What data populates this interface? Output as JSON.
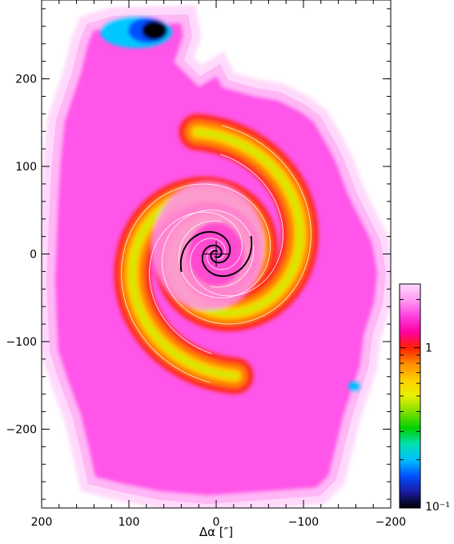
{
  "chart_data": {
    "type": "heatmap",
    "title": "",
    "xlabel": "Δα [″]",
    "ylabel": "",
    "xlim": [
      200,
      -200
    ],
    "ylim": [
      -290,
      290
    ],
    "xticks": [
      200,
      100,
      0,
      -100,
      -200
    ],
    "yticks": [
      200,
      100,
      0,
      -100,
      -200
    ],
    "xtick_labels": [
      "200",
      "100",
      "0",
      "−100",
      "−200"
    ],
    "ytick_labels": [
      "200",
      "100",
      "0",
      "−100",
      "−200"
    ],
    "colorbar": {
      "scale": "log",
      "range": [
        0.1,
        2.5
      ],
      "tick_labels": [
        "1",
        "10⁻¹"
      ],
      "tick_values": [
        1,
        0.1
      ],
      "colormap": [
        "#000000",
        "#1a1aa0",
        "#0050ff",
        "#00bfff",
        "#00e0b0",
        "#00d000",
        "#7fe000",
        "#e8f000",
        "#ffd000",
        "#ff8c00",
        "#ff2000",
        "#ff00a0",
        "#ff40e0",
        "#ff9cf0",
        "#ffd8ff"
      ]
    },
    "overlay": {
      "name": "spiral-arms",
      "color": "#000000",
      "center": [
        0,
        0
      ],
      "crosshair": true
    },
    "background_color": "#ff55e8",
    "contour_color": "#ffffff"
  }
}
